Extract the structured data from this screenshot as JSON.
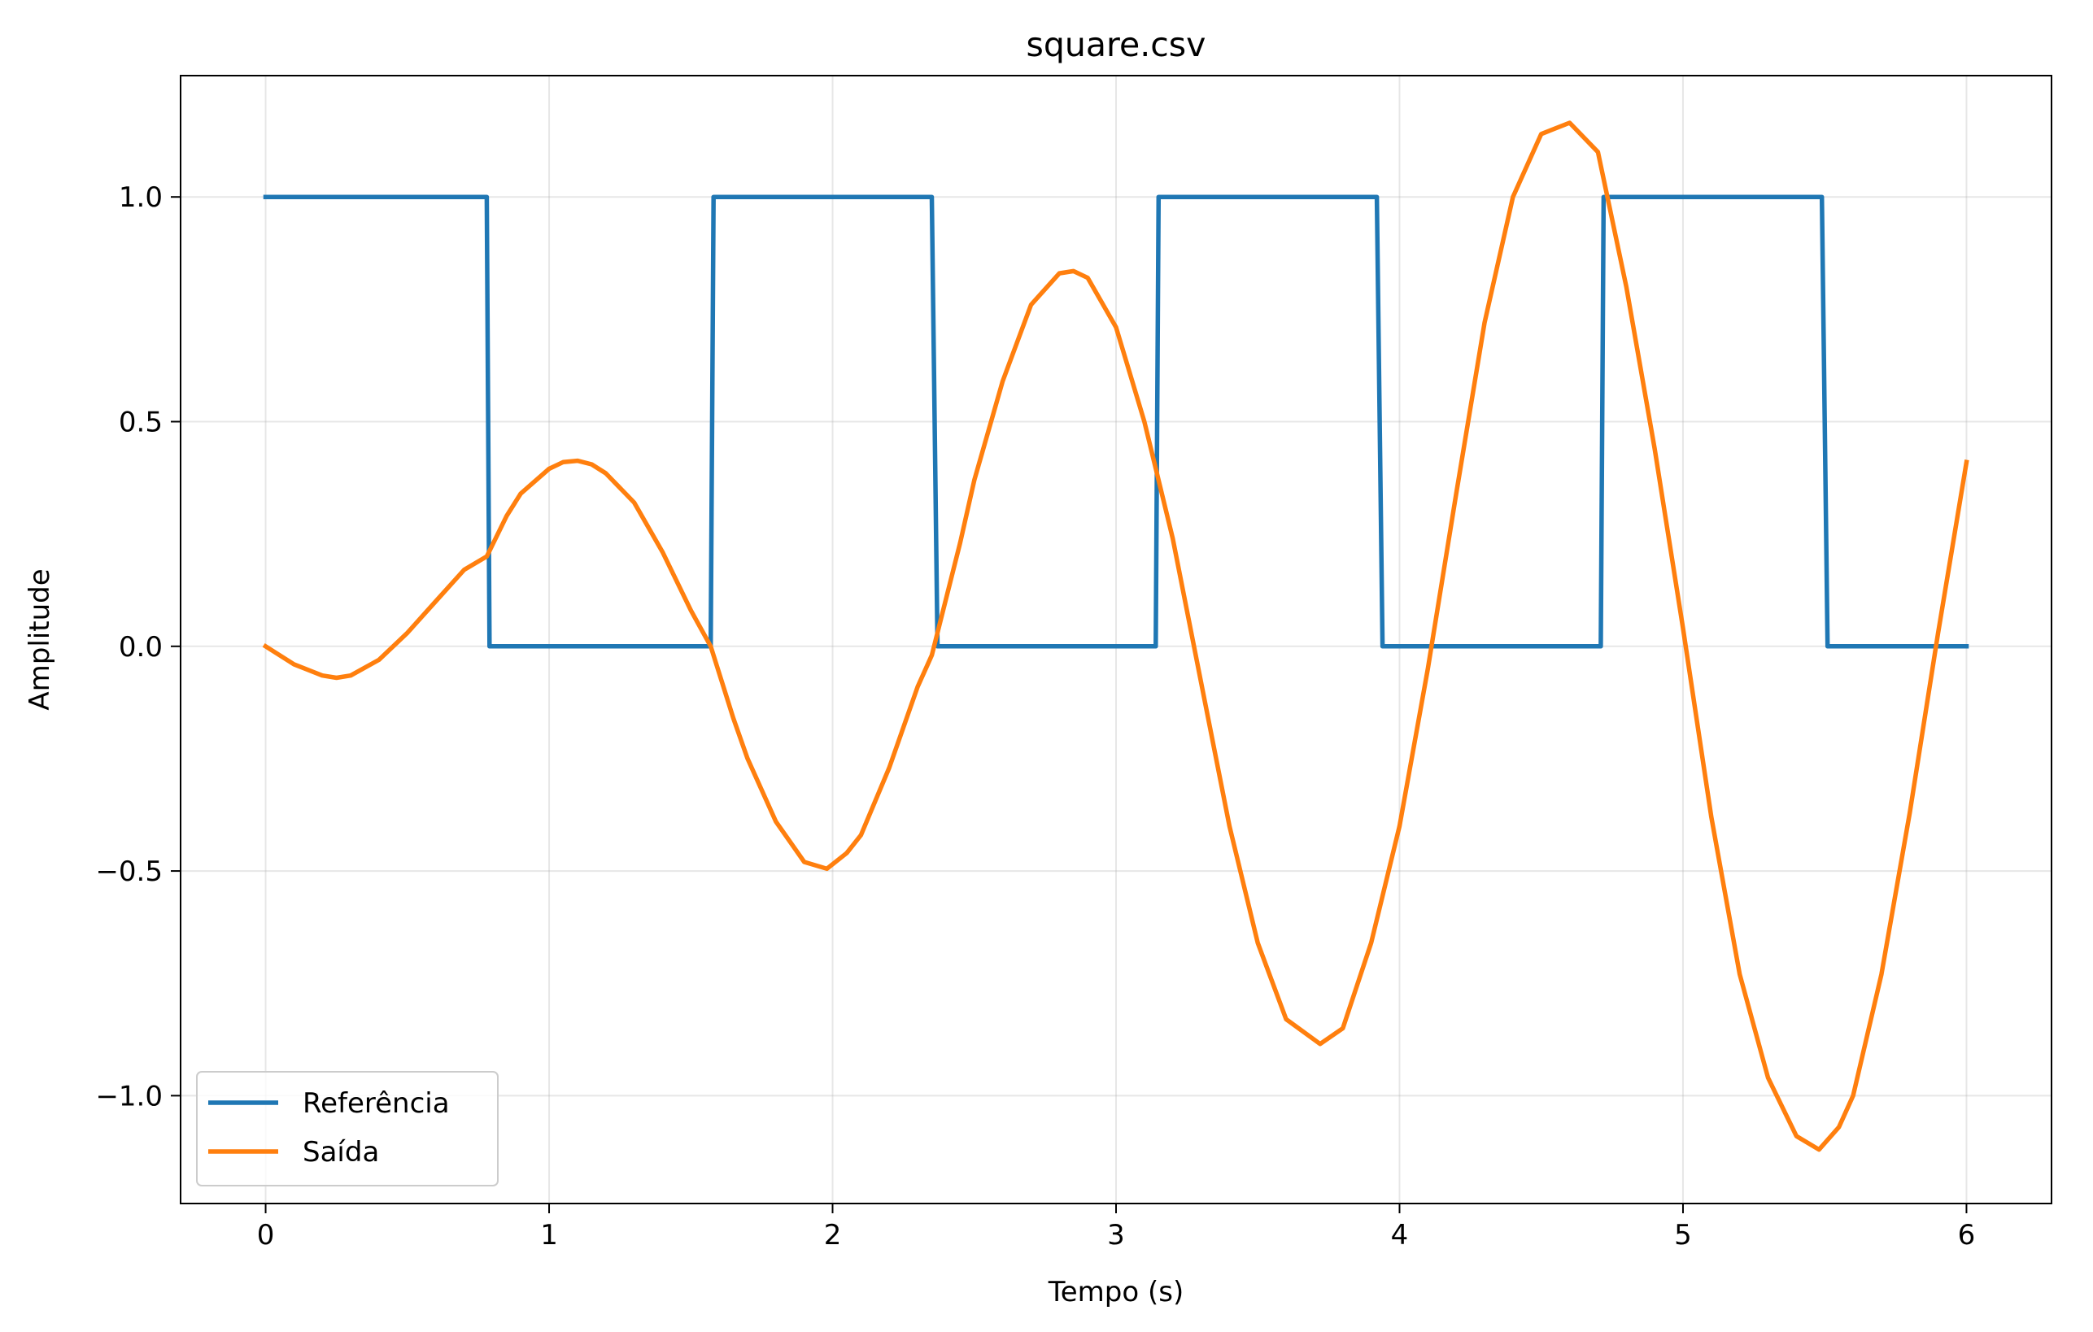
{
  "chart_data": {
    "type": "line",
    "title": "square.csv",
    "xlabel": "Tempo (s)",
    "ylabel": "Amplitude",
    "xlim": [
      -0.3,
      6.3
    ],
    "ylim": [
      -1.24,
      1.27
    ],
    "xticks": [
      0,
      1,
      2,
      3,
      4,
      5,
      6
    ],
    "xtick_labels": [
      "0",
      "1",
      "2",
      "3",
      "4",
      "5",
      "6"
    ],
    "yticks": [
      -1.0,
      -0.5,
      0.0,
      0.5,
      1.0
    ],
    "ytick_labels": [
      "−1.0",
      "−0.5",
      "0.0",
      "0.5",
      "1.0"
    ],
    "grid": true,
    "legend_position": "lower-left",
    "series": [
      {
        "name": "Referência",
        "color": "#1f77b4",
        "x": [
          0,
          0.78,
          0.79,
          1.57,
          1.58,
          2.35,
          2.37,
          3.14,
          3.15,
          3.92,
          3.94,
          4.71,
          4.72,
          5.49,
          5.51,
          6.0
        ],
        "y": [
          1,
          1,
          0,
          0,
          1,
          1,
          0,
          0,
          1,
          1,
          0,
          0,
          1,
          1,
          0,
          0
        ]
      },
      {
        "name": "Saída",
        "color": "#ff7f0e",
        "x": [
          0,
          0.1,
          0.2,
          0.25,
          0.3,
          0.4,
          0.5,
          0.6,
          0.7,
          0.78,
          0.85,
          0.9,
          1.0,
          1.05,
          1.1,
          1.15,
          1.2,
          1.3,
          1.4,
          1.5,
          1.57,
          1.65,
          1.7,
          1.8,
          1.9,
          1.98,
          2.05,
          2.1,
          2.2,
          2.3,
          2.35,
          2.45,
          2.5,
          2.6,
          2.7,
          2.8,
          2.85,
          2.9,
          3.0,
          3.1,
          3.2,
          3.3,
          3.4,
          3.5,
          3.6,
          3.72,
          3.8,
          3.9,
          4.0,
          4.1,
          4.2,
          4.3,
          4.4,
          4.5,
          4.6,
          4.7,
          4.8,
          4.9,
          5.0,
          5.1,
          5.2,
          5.3,
          5.4,
          5.48,
          5.55,
          5.6,
          5.7,
          5.8,
          5.9,
          6.0
        ],
        "y": [
          0.0,
          -0.04,
          -0.065,
          -0.07,
          -0.065,
          -0.03,
          0.03,
          0.1,
          0.17,
          0.2,
          0.29,
          0.34,
          0.395,
          0.41,
          0.413,
          0.405,
          0.385,
          0.32,
          0.21,
          0.08,
          0.0,
          -0.16,
          -0.25,
          -0.39,
          -0.48,
          -0.495,
          -0.46,
          -0.42,
          -0.27,
          -0.09,
          -0.02,
          0.23,
          0.37,
          0.59,
          0.76,
          0.83,
          0.835,
          0.82,
          0.71,
          0.5,
          0.24,
          -0.08,
          -0.4,
          -0.66,
          -0.83,
          -0.885,
          -0.85,
          -0.66,
          -0.4,
          -0.05,
          0.34,
          0.72,
          1.0,
          1.14,
          1.165,
          1.1,
          0.8,
          0.44,
          0.04,
          -0.38,
          -0.73,
          -0.96,
          -1.09,
          -1.12,
          -1.07,
          -1.0,
          -0.73,
          -0.37,
          0.03,
          0.41
        ]
      }
    ]
  }
}
